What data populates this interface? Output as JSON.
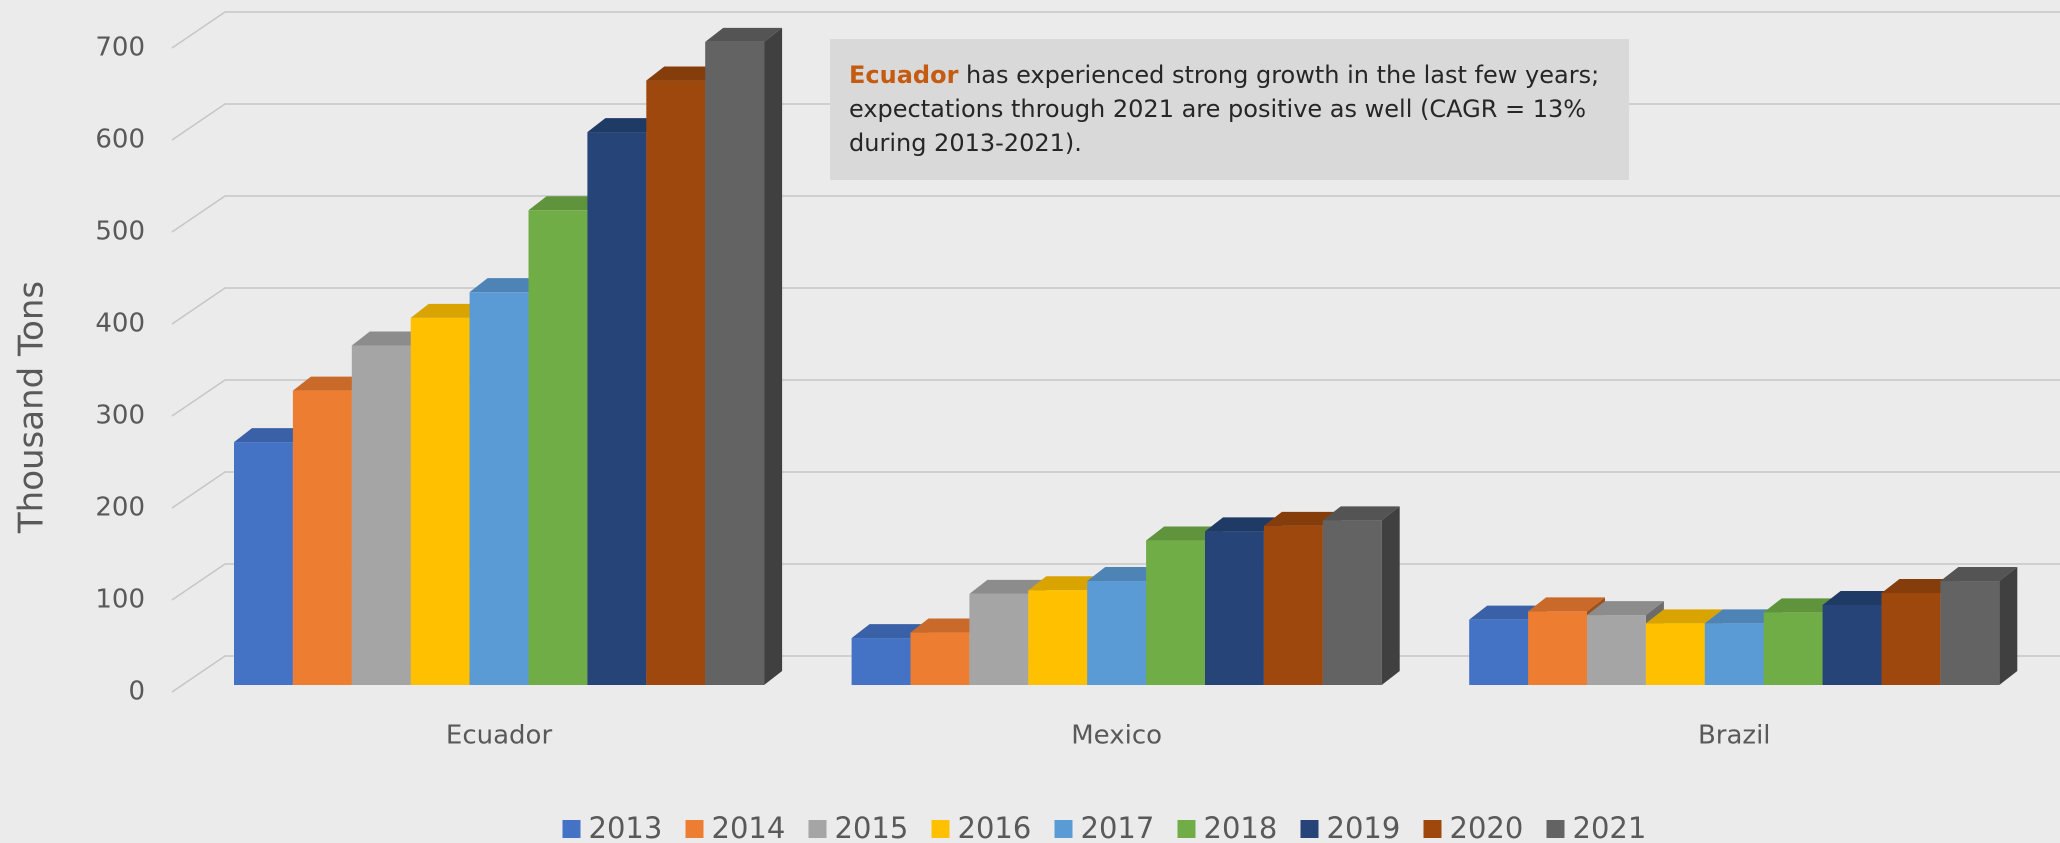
{
  "chart_data": {
    "type": "bar3d",
    "y_label": "Thousand Tons",
    "annotation": {
      "highlight": "Ecuador",
      "text": " has experienced strong growth in the last few years; expectations through 2021 are positive as well (CAGR = 13% during 2013-2021)."
    },
    "categories": [
      "Ecuador",
      "Mexico",
      "Brazil"
    ],
    "series": [
      {
        "name": "2013",
        "color": "#4472c4",
        "values": [
          264,
          51,
          71
        ]
      },
      {
        "name": "2014",
        "color": "#ed7d31",
        "values": [
          320,
          57,
          80
        ]
      },
      {
        "name": "2015",
        "color": "#a5a5a5",
        "values": [
          369,
          99,
          76
        ]
      },
      {
        "name": "2016",
        "color": "#ffc000",
        "values": [
          399,
          103,
          67
        ]
      },
      {
        "name": "2017",
        "color": "#5b9bd5",
        "values": [
          427,
          113,
          67
        ]
      },
      {
        "name": "2018",
        "color": "#70ad47",
        "values": [
          516,
          157,
          79
        ]
      },
      {
        "name": "2019",
        "color": "#264478",
        "values": [
          601,
          167,
          87
        ]
      },
      {
        "name": "2020",
        "color": "#9e480e",
        "values": [
          657,
          173,
          100
        ]
      },
      {
        "name": "2021",
        "color": "#636363",
        "values": [
          699,
          179,
          113
        ]
      }
    ],
    "ylim": [
      0,
      700
    ],
    "yticks": [
      0,
      100,
      200,
      300,
      400,
      500,
      600,
      700
    ],
    "grid": true,
    "legend": "bottom"
  }
}
